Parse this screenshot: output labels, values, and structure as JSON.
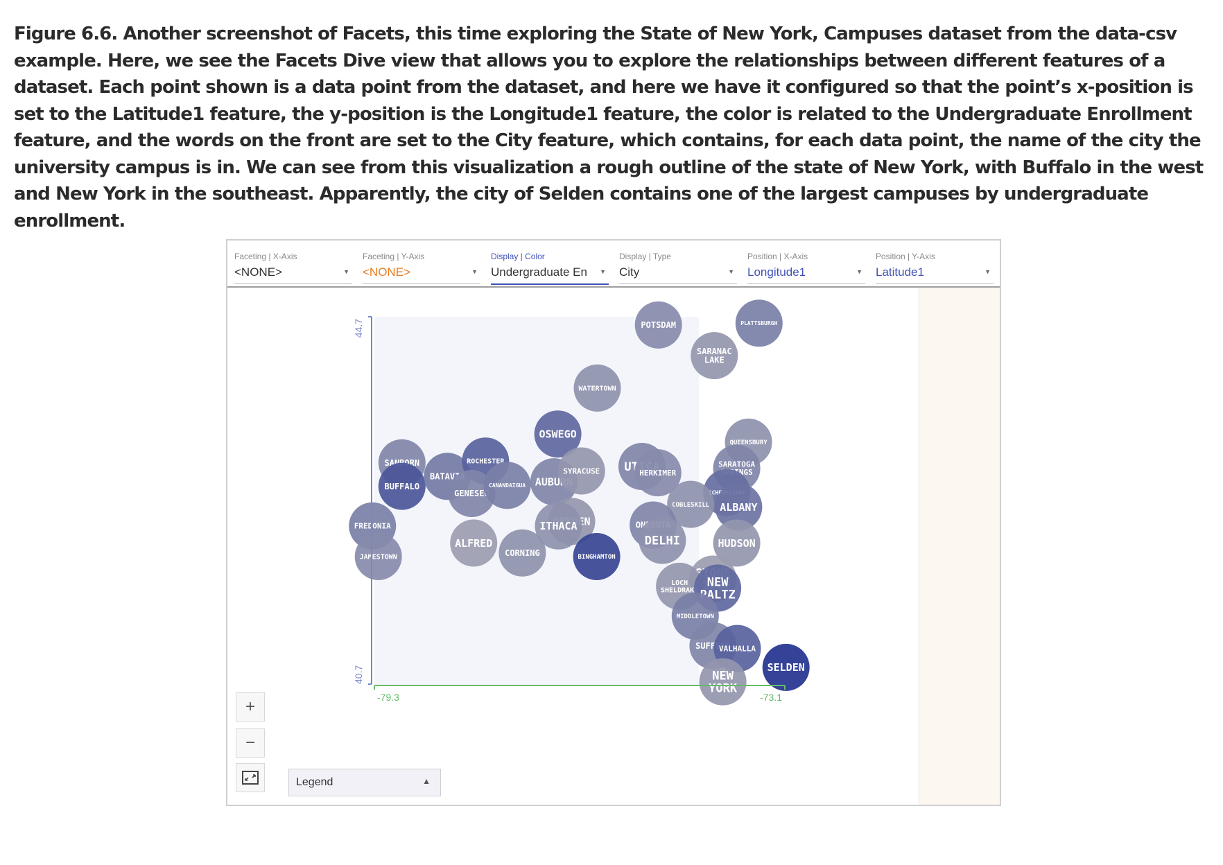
{
  "caption": "Figure 6.6. Another screenshot of Facets, this time exploring the State of New York, Campuses dataset from the data-csv example. Here, we see the Facets Dive view that allows you to explore the relationships between different features of a dataset. Each point shown is a data point from the dataset, and here we have it configured so that the point’s x-position is set to the Latitude1 feature, the y-position is the Longitude1 feature, the color is related to the Undergraduate Enrollment feature, and the words on the front are set to the City feature, which contains, for each data point, the name of the city the university campus is in. We can see from this visualization a rough outline of the state of New York, with Buffalo in the west and New York in the southeast. Apparently, the city of Selden contains one of the largest campuses by undergraduate enrollment.",
  "controls": [
    {
      "label": "Faceting | X-Axis",
      "value": "<NONE>"
    },
    {
      "label": "Faceting | Y-Axis",
      "value": "<NONE>"
    },
    {
      "label": "Display | Color",
      "value": "Undergraduate En"
    },
    {
      "label": "Display | Type",
      "value": "City"
    },
    {
      "label": "Position | X-Axis",
      "value": "Longitude1"
    },
    {
      "label": "Position | Y-Axis",
      "value": "Latitude1"
    }
  ],
  "axes": {
    "x_min_label": "-79.3",
    "x_max_label": "-73.1",
    "y_max_label": "44.7",
    "y_min_label": "40.7"
  },
  "zoom": {
    "in": "+",
    "out": "−"
  },
  "legend": {
    "label": "Legend"
  },
  "colors": {
    "axis_y": "#7986cb",
    "axis_x": "#66bb6a",
    "accent": "#3f51b5",
    "low": "#a8a8b4",
    "high": "#23338e"
  },
  "chart_data": {
    "type": "scatter",
    "x_field": "Longitude1",
    "y_field": "Latitude1",
    "color_field": "Undergraduate Enrollment",
    "label_field": "City",
    "xlim": [
      -79.3,
      -73.1
    ],
    "ylim": [
      40.7,
      44.7
    ],
    "points": [
      {
        "city": "POTSDAM",
        "lon": -74.98,
        "lat": 44.67,
        "c": 0.25
      },
      {
        "city": "PLATTSBURGH",
        "lon": -73.45,
        "lat": 44.69,
        "c": 0.35
      },
      {
        "city": "SARANAC LAKE",
        "lon": -74.13,
        "lat": 44.33,
        "c": 0.15
      },
      {
        "city": "WATERTOWN",
        "lon": -75.91,
        "lat": 43.97,
        "c": 0.2
      },
      {
        "city": "OSWEGO",
        "lon": -76.51,
        "lat": 43.46,
        "c": 0.55
      },
      {
        "city": "SANBORN",
        "lon": -78.88,
        "lat": 43.14,
        "c": 0.3
      },
      {
        "city": "BUFFALO",
        "lon": -78.88,
        "lat": 42.88,
        "c": 0.7
      },
      {
        "city": "BATAVIA",
        "lon": -78.19,
        "lat": 42.99,
        "c": 0.4
      },
      {
        "city": "ROCHESTER",
        "lon": -77.61,
        "lat": 43.16,
        "c": 0.6
      },
      {
        "city": "GENESEO",
        "lon": -77.82,
        "lat": 42.8,
        "c": 0.3
      },
      {
        "city": "CANANDAIGUA",
        "lon": -77.28,
        "lat": 42.89,
        "c": 0.35
      },
      {
        "city": "AUBURN",
        "lon": -76.57,
        "lat": 42.93,
        "c": 0.3
      },
      {
        "city": "SYRACUSE",
        "lon": -76.15,
        "lat": 43.05,
        "c": 0.15
      },
      {
        "city": "UTICA",
        "lon": -75.23,
        "lat": 43.1,
        "c": 0.3
      },
      {
        "city": "HERKIMER",
        "lon": -74.99,
        "lat": 43.03,
        "c": 0.25
      },
      {
        "city": "QUEENSBURY",
        "lon": -73.61,
        "lat": 43.37,
        "c": 0.2
      },
      {
        "city": "SARATOGA SPRINGS",
        "lon": -73.79,
        "lat": 43.08,
        "c": 0.3
      },
      {
        "city": "SCHENECTADY",
        "lon": -73.94,
        "lat": 42.81,
        "c": 0.5
      },
      {
        "city": "ALBANY",
        "lon": -73.76,
        "lat": 42.65,
        "c": 0.45
      },
      {
        "city": "COBLESKILL",
        "lon": -74.49,
        "lat": 42.68,
        "c": 0.2
      },
      {
        "city": "FREDONIA",
        "lon": -79.33,
        "lat": 42.44,
        "c": 0.35
      },
      {
        "city": "JAMESTOWN",
        "lon": -79.24,
        "lat": 42.1,
        "c": 0.25
      },
      {
        "city": "ALFRED",
        "lon": -77.79,
        "lat": 42.25,
        "c": 0.1
      },
      {
        "city": "CORNING",
        "lon": -77.05,
        "lat": 42.14,
        "c": 0.2
      },
      {
        "city": "DRYDEN",
        "lon": -76.3,
        "lat": 42.49,
        "c": 0.15
      },
      {
        "city": "ITHACA",
        "lon": -76.5,
        "lat": 42.44,
        "c": 0.2
      },
      {
        "city": "BINGHAMTON",
        "lon": -75.92,
        "lat": 42.1,
        "c": 0.85
      },
      {
        "city": "ONEONTA",
        "lon": -75.06,
        "lat": 42.45,
        "c": 0.3
      },
      {
        "city": "DELHI",
        "lon": -74.92,
        "lat": 42.28,
        "c": 0.2
      },
      {
        "city": "HUDSON",
        "lon": -73.79,
        "lat": 42.25,
        "c": 0.15
      },
      {
        "city": "STONE RIDGE",
        "lon": -74.15,
        "lat": 41.85,
        "c": 0.1
      },
      {
        "city": "LOCH SHELDRAKE",
        "lon": -74.66,
        "lat": 41.77,
        "c": 0.15
      },
      {
        "city": "NEW PALTZ",
        "lon": -74.08,
        "lat": 41.75,
        "c": 0.55
      },
      {
        "city": "MIDDLETOWN",
        "lon": -74.42,
        "lat": 41.44,
        "c": 0.35
      },
      {
        "city": "SUFFERN",
        "lon": -74.15,
        "lat": 41.11,
        "c": 0.3
      },
      {
        "city": "VALHALLA",
        "lon": -73.78,
        "lat": 41.08,
        "c": 0.6
      },
      {
        "city": "NEW YORK",
        "lon": -74.0,
        "lat": 40.71,
        "c": 0.15
      },
      {
        "city": "SELDEN",
        "lon": -73.04,
        "lat": 40.87,
        "c": 1.0
      }
    ]
  }
}
